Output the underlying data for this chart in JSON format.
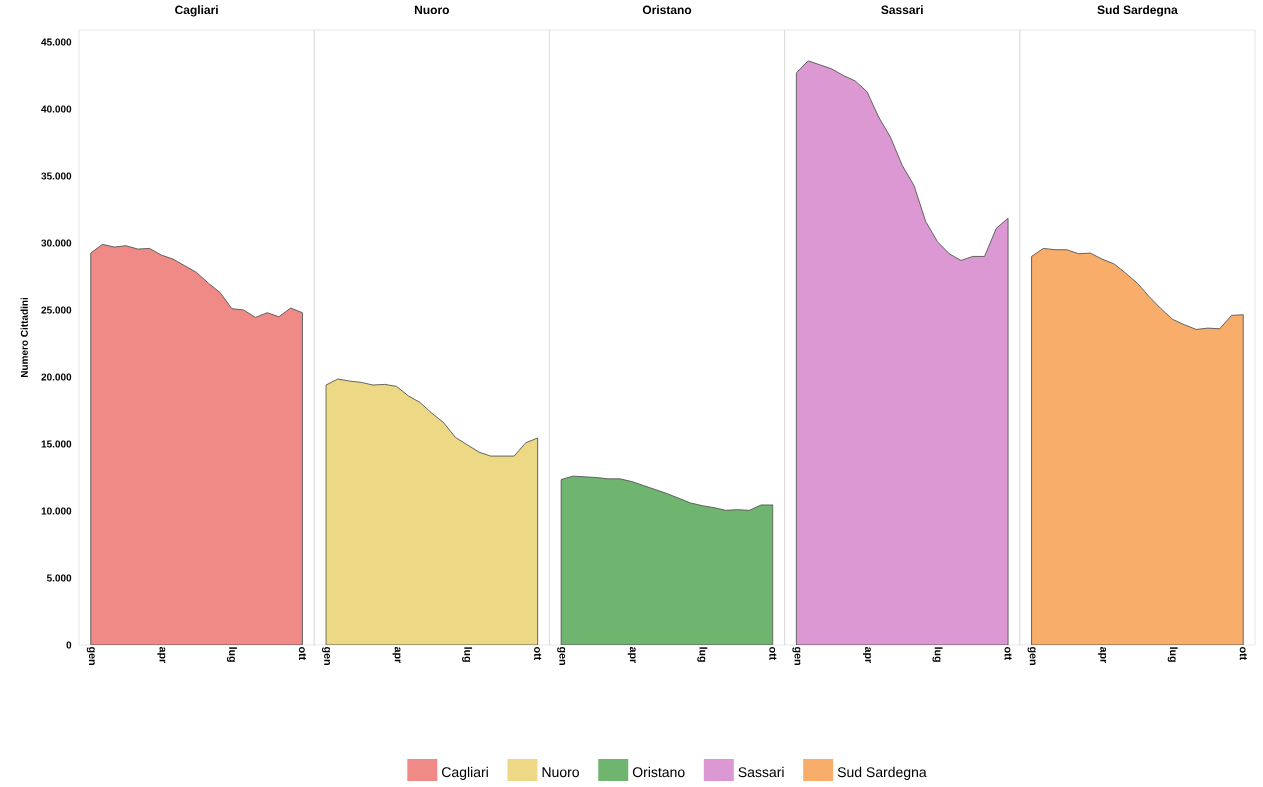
{
  "chart_data": [
    {
      "type": "area",
      "title": "Cagliari",
      "ylabel": "Numero Cittadini",
      "categories": [
        "gen",
        null,
        null,
        null,
        null,
        null,
        "apr",
        null,
        null,
        null,
        null,
        null,
        "lug",
        null,
        null,
        null,
        null,
        null,
        "ott"
      ],
      "ylim": [
        0,
        45900
      ],
      "yticks": [
        {
          "value": 0,
          "label": "0"
        },
        {
          "value": 5000,
          "label": "5.000"
        },
        {
          "value": 10000,
          "label": "10.000"
        },
        {
          "value": 15000,
          "label": "15.000"
        },
        {
          "value": 20000,
          "label": "20.000"
        },
        {
          "value": 25000,
          "label": "25.000"
        },
        {
          "value": 30000,
          "label": "30.000"
        },
        {
          "value": 35000,
          "label": "35.000"
        },
        {
          "value": 40000,
          "label": "40.000"
        },
        {
          "value": 45000,
          "label": "45.000"
        }
      ],
      "legend": "bottom",
      "series": [
        {
          "name": "Cagliari",
          "color": "#f08a87",
          "values": [
            29250,
            29900,
            29700,
            29800,
            29550,
            29600,
            29100,
            28800,
            28300,
            27800,
            27000,
            26300,
            25100,
            25000,
            24450,
            24800,
            24500,
            25150,
            24800
          ]
        }
      ]
    },
    {
      "type": "area",
      "title": "Nuoro",
      "categories": [
        "gen",
        null,
        null,
        null,
        null,
        null,
        "apr",
        null,
        null,
        null,
        null,
        null,
        "lug",
        null,
        null,
        null,
        null,
        null,
        "ott"
      ],
      "ylim": [
        0,
        45900
      ],
      "tick_labels": "x",
      "legend": "bottom",
      "series": [
        {
          "name": "Nuoro",
          "color": "#edd985",
          "values": [
            19400,
            19850,
            19700,
            19600,
            19400,
            19450,
            19300,
            18600,
            18100,
            17300,
            16600,
            15500,
            14950,
            14400,
            14100,
            14100,
            14100,
            15100,
            15450
          ]
        }
      ]
    },
    {
      "type": "area",
      "title": "Oristano",
      "categories": [
        "gen",
        null,
        null,
        null,
        null,
        null,
        "apr",
        null,
        null,
        null,
        null,
        null,
        "lug",
        null,
        null,
        null,
        null,
        null,
        "ott"
      ],
      "ylim": [
        0,
        45900
      ],
      "tick_labels": "x",
      "legend": "bottom",
      "series": [
        {
          "name": "Oristano",
          "color": "#6fb46f",
          "values": [
            12350,
            12600,
            12550,
            12500,
            12400,
            12400,
            12200,
            11900,
            11600,
            11300,
            10950,
            10600,
            10400,
            10250,
            10050,
            10100,
            10050,
            10450,
            10450
          ]
        }
      ]
    },
    {
      "type": "area",
      "title": "Sassari",
      "categories": [
        "gen",
        null,
        null,
        null,
        null,
        null,
        "apr",
        null,
        null,
        null,
        null,
        null,
        "lug",
        null,
        null,
        null,
        null,
        null,
        "ott"
      ],
      "ylim": [
        0,
        45900
      ],
      "tick_labels": "x",
      "legend": "bottom",
      "series": [
        {
          "name": "Sassari",
          "color": "#dc98d2",
          "values": [
            42700,
            43600,
            43300,
            43000,
            42500,
            42100,
            41300,
            39400,
            37900,
            35800,
            34300,
            31600,
            30100,
            29200,
            28700,
            29000,
            29000,
            31100,
            31850
          ]
        }
      ]
    },
    {
      "type": "area",
      "title": "Sud Sardegna",
      "categories": [
        "gen",
        null,
        null,
        null,
        null,
        null,
        "apr",
        null,
        null,
        null,
        null,
        null,
        "lug",
        null,
        null,
        null,
        null,
        null,
        "ott"
      ],
      "ylim": [
        0,
        45900
      ],
      "tick_labels": "x",
      "legend": "bottom",
      "series": [
        {
          "name": "Sud Sardegna",
          "color": "#f9ad6b",
          "values": [
            29000,
            29600,
            29500,
            29500,
            29200,
            29250,
            28800,
            28450,
            27750,
            27000,
            26000,
            25100,
            24300,
            23900,
            23550,
            23650,
            23600,
            24600,
            24650
          ]
        }
      ]
    }
  ]
}
